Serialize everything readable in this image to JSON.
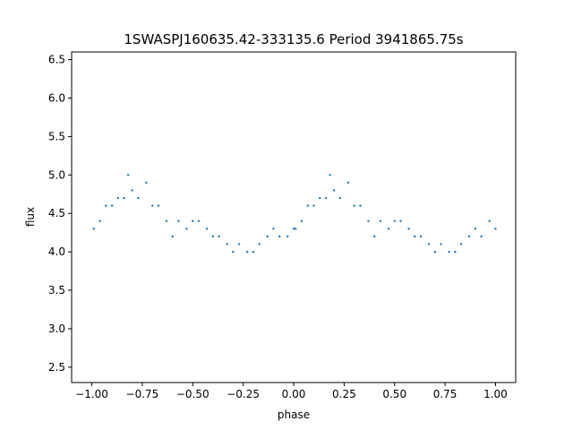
{
  "chart_data": {
    "type": "scatter",
    "title": "1SWASPJ160635.42-333135.6 Period 3941865.75s",
    "xlabel": "phase",
    "ylabel": "flux",
    "xlim": [
      -1.1,
      1.1
    ],
    "ylim": [
      2.3,
      6.6
    ],
    "xticks": [
      -1.0,
      -0.75,
      -0.5,
      -0.25,
      0.0,
      0.25,
      0.5,
      0.75,
      1.0
    ],
    "xtick_labels": [
      "−1.00",
      "−0.75",
      "−0.50",
      "−0.25",
      "0.00",
      "0.25",
      "0.50",
      "0.75",
      "1.00"
    ],
    "yticks": [
      2.5,
      3.0,
      3.5,
      4.0,
      4.5,
      5.0,
      5.5,
      6.0,
      6.5
    ],
    "ytick_labels": [
      "2.5",
      "3.0",
      "3.5",
      "4.0",
      "4.5",
      "5.0",
      "5.5",
      "6.0",
      "6.5"
    ],
    "grid": false,
    "legend": "none",
    "point_color": "#1f77b4",
    "series": [
      {
        "x": [
          -0.99,
          -0.96,
          -0.93,
          -0.9,
          -0.87,
          -0.84,
          -0.82,
          -0.8,
          -0.77,
          -0.73,
          -0.7,
          -0.67,
          -0.63,
          -0.6,
          -0.57,
          -0.53,
          -0.5,
          -0.47,
          -0.43,
          -0.4,
          -0.37,
          -0.33,
          -0.3,
          -0.27,
          -0.23,
          -0.2,
          -0.17,
          -0.13,
          -0.1,
          -0.07,
          -0.03,
          0.0,
          0.01,
          0.04,
          0.07,
          0.1,
          0.13,
          0.16,
          0.18,
          0.2,
          0.23,
          0.27,
          0.3,
          0.33,
          0.37,
          0.4,
          0.43,
          0.47,
          0.5,
          0.53,
          0.57,
          0.6,
          0.63,
          0.67,
          0.7,
          0.73,
          0.77,
          0.8,
          0.83,
          0.87,
          0.9,
          0.93,
          0.97,
          1.0
        ],
        "y": [
          4.3,
          4.4,
          4.6,
          4.6,
          4.7,
          4.7,
          5.0,
          4.8,
          4.7,
          4.9,
          4.6,
          4.6,
          4.4,
          4.2,
          4.4,
          4.3,
          4.4,
          4.4,
          4.3,
          4.2,
          4.2,
          4.1,
          4.0,
          4.1,
          4.0,
          4.0,
          4.1,
          4.2,
          4.3,
          4.2,
          4.2,
          4.3,
          4.3,
          4.4,
          4.6,
          4.6,
          4.7,
          4.7,
          5.0,
          4.8,
          4.7,
          4.9,
          4.6,
          4.6,
          4.4,
          4.2,
          4.4,
          4.3,
          4.4,
          4.4,
          4.3,
          4.2,
          4.2,
          4.1,
          4.0,
          4.1,
          4.0,
          4.0,
          4.1,
          4.2,
          4.3,
          4.2,
          4.4,
          4.3
        ]
      }
    ]
  }
}
